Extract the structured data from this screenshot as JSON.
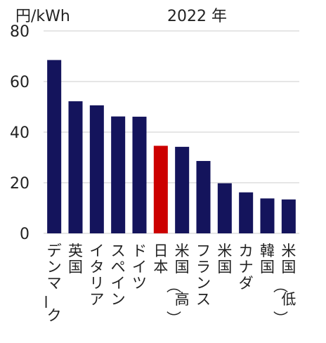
{
  "chart_data": {
    "type": "bar",
    "title": "2022 年",
    "ylabel": "円/kWh",
    "xlabel": "",
    "ylim": [
      0,
      80
    ],
    "yticks": [
      0,
      20,
      40,
      60,
      80
    ],
    "grid": true,
    "categories": [
      "デンマーク",
      "英国",
      "イタリア",
      "スペイン",
      "ドイツ",
      "日本",
      "米国（高）",
      "フランス",
      "米国",
      "カナダ",
      "韓国",
      "米国（低）"
    ],
    "values": [
      68.5,
      52.2,
      50.6,
      46.2,
      46.1,
      34.6,
      34.2,
      28.6,
      19.8,
      16.2,
      13.8,
      13.4
    ],
    "highlight_category": "日本",
    "colors": {
      "bar": "#14145c",
      "highlight": "#cc0000",
      "grid": "#cccccc",
      "text": "#222222"
    }
  }
}
